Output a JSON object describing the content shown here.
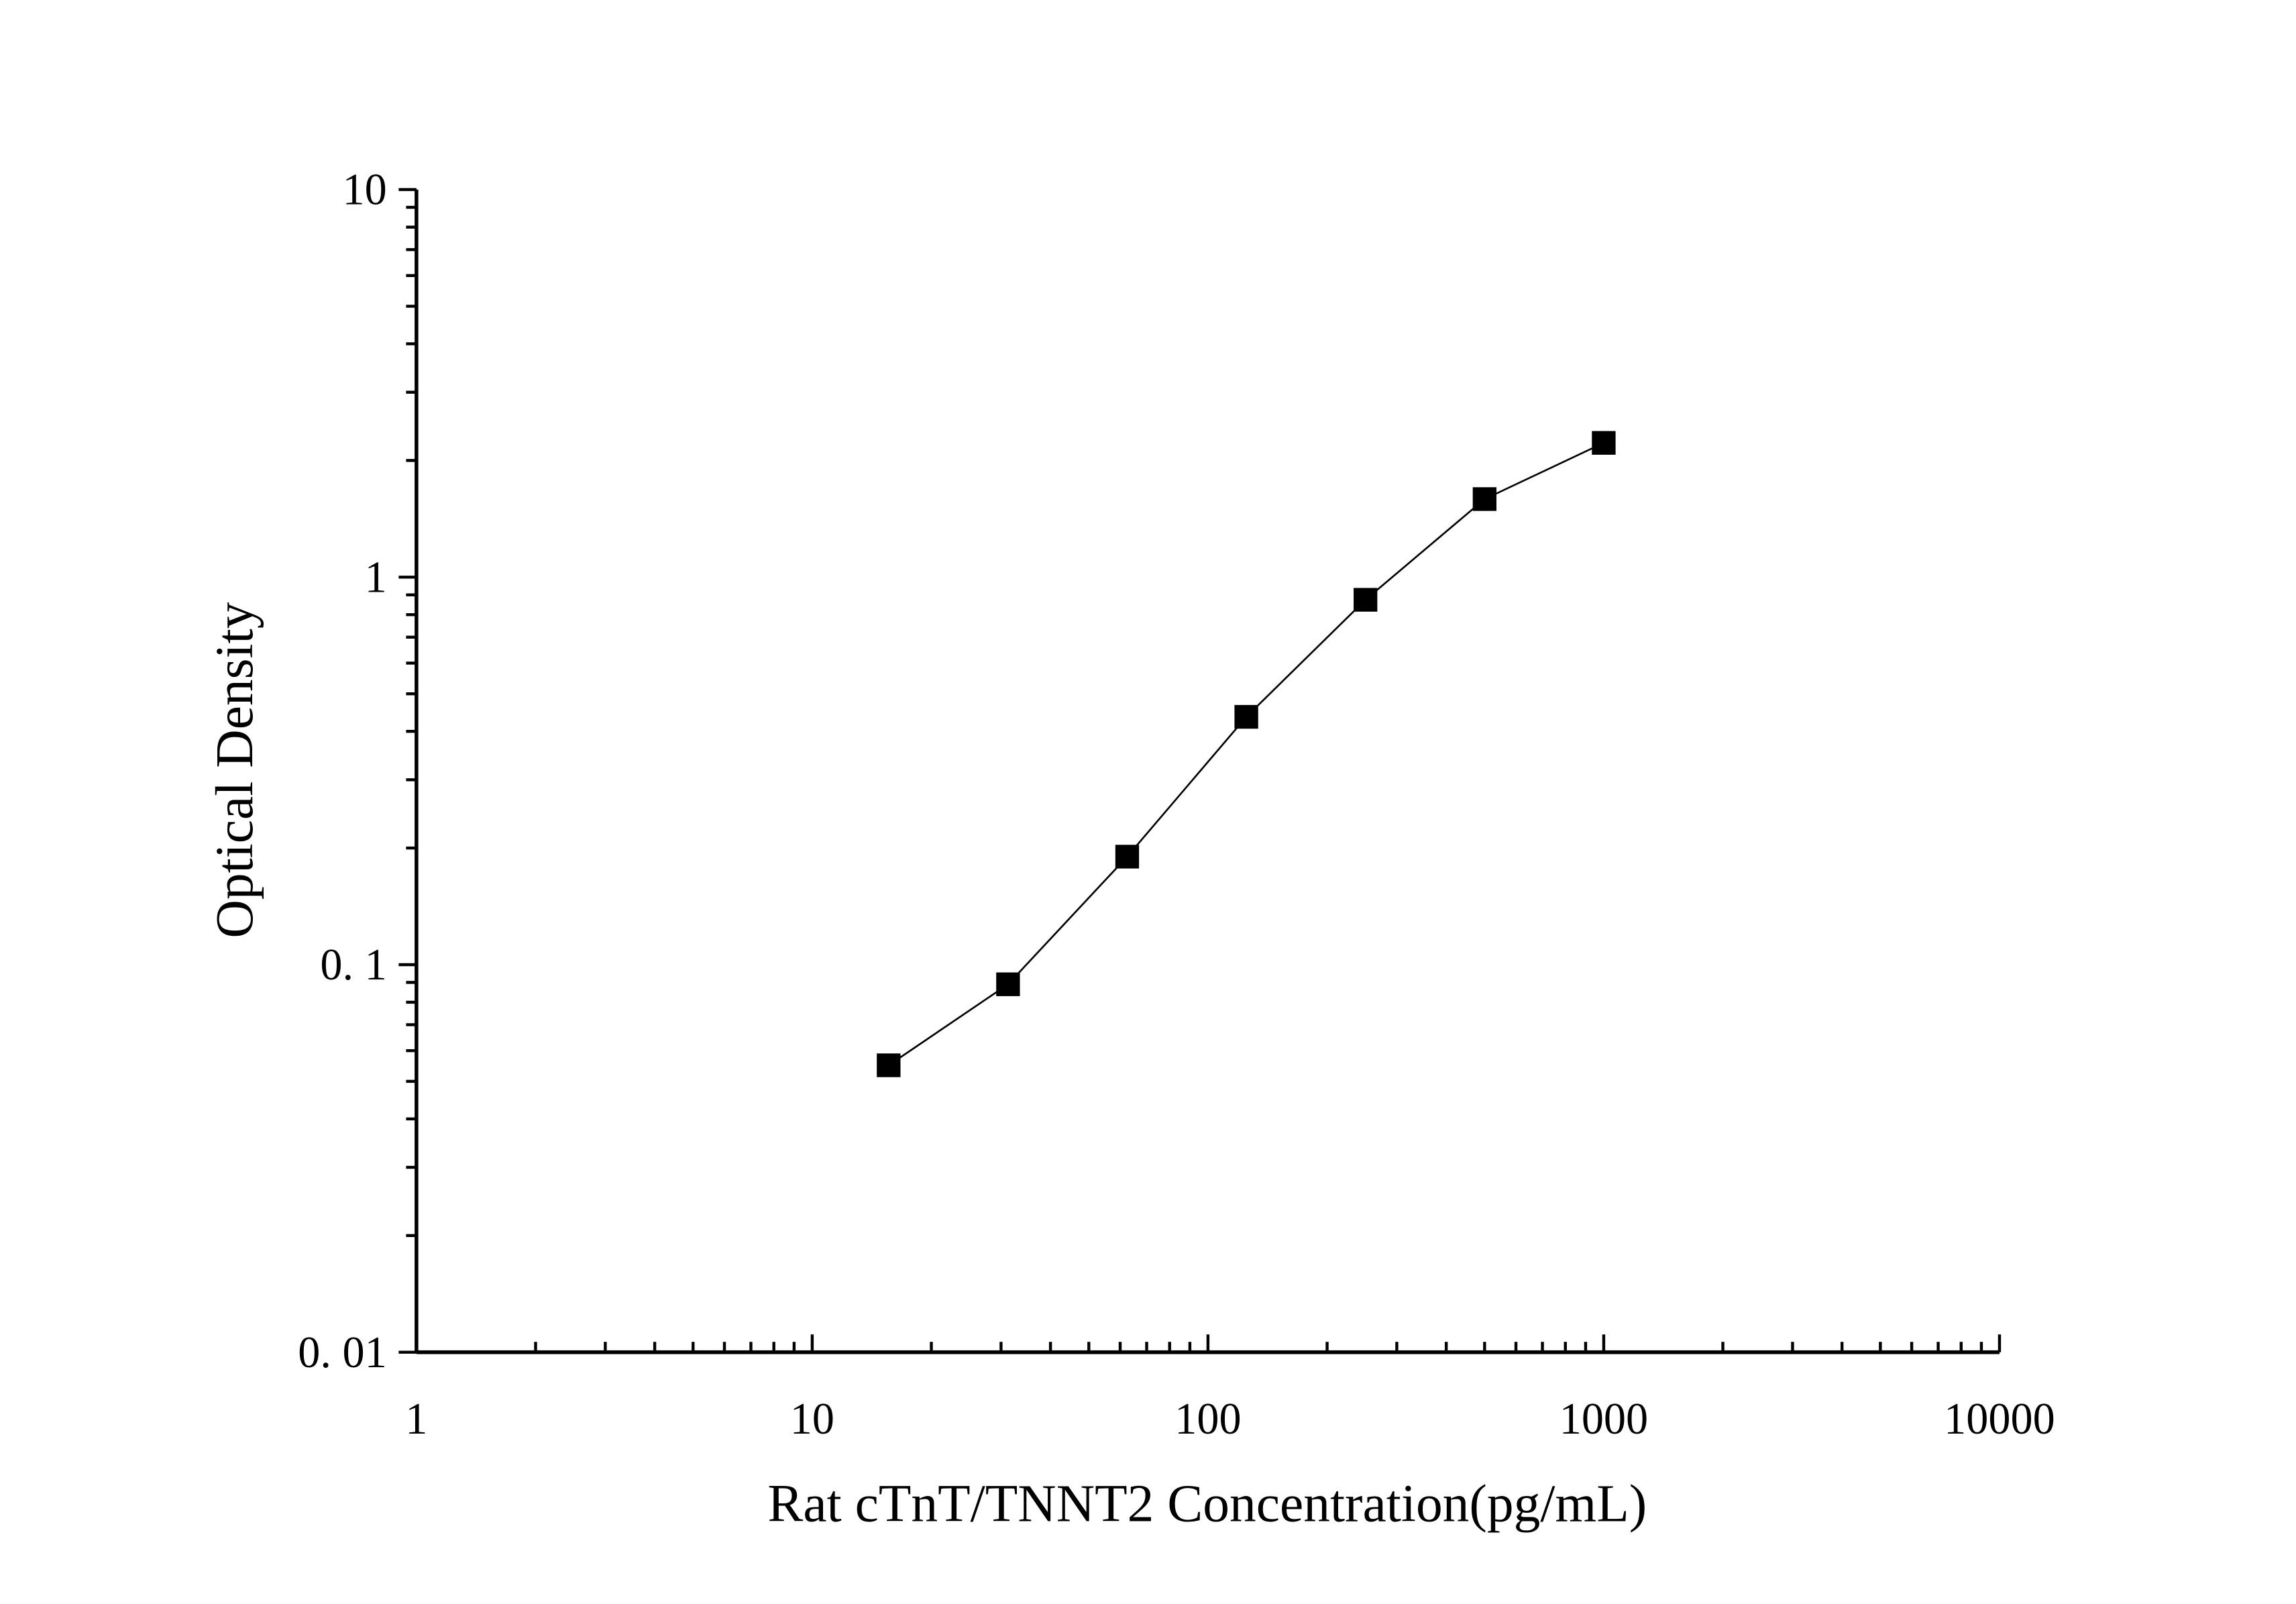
{
  "chart_data": {
    "type": "line",
    "title": "",
    "xlabel": "Rat cTnT/TNNT2 Concentration(pg/mL)",
    "ylabel": "Optical Density",
    "xscale": "log",
    "yscale": "log",
    "xlim": [
      1,
      10000
    ],
    "ylim": [
      0.01,
      10
    ],
    "xticks": [
      "1",
      "10",
      "100",
      "1000",
      "10000"
    ],
    "yticks": [
      "0. 01",
      "0. 1",
      "1",
      "10"
    ],
    "grid": false,
    "marker": "square",
    "color": "#000000",
    "x": [
      15.6,
      31.25,
      62.5,
      125,
      250,
      500,
      1000
    ],
    "y": [
      0.055,
      0.089,
      0.19,
      0.436,
      0.874,
      1.59,
      2.22
    ]
  }
}
